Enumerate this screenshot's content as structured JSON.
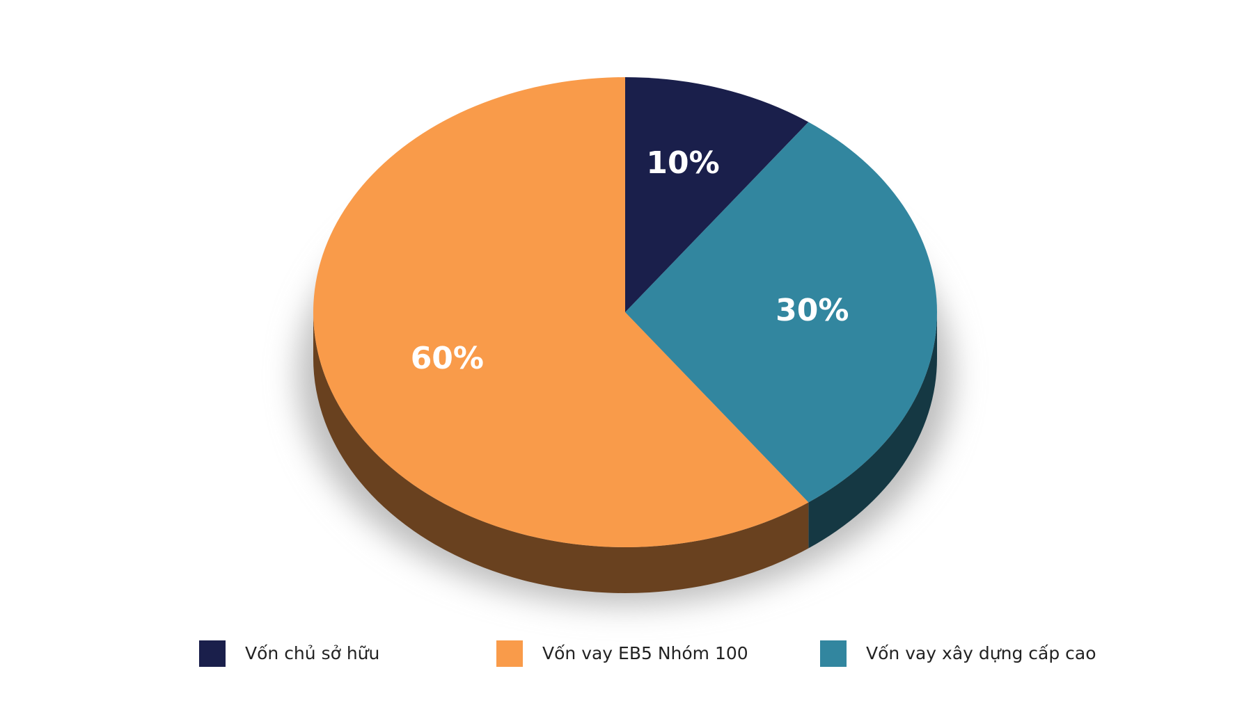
{
  "chart_data": {
    "type": "pie",
    "categories": [
      "Vốn chủ sở hữu",
      "Vốn vay EB5 Nhóm 100",
      "Vốn vay xây dựng cấp cao"
    ],
    "values": [
      10,
      60,
      30
    ],
    "value_labels": [
      "10%",
      "60%",
      "30%"
    ],
    "colors": [
      "#1a1f4b",
      "#f99b4a",
      "#32869f"
    ]
  }
}
